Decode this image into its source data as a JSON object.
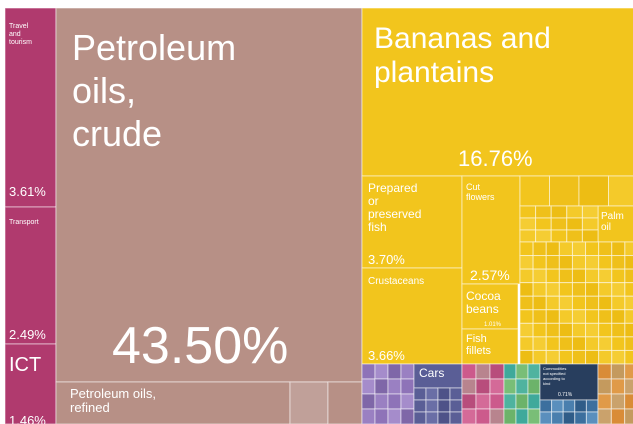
{
  "chart_data": {
    "type": "treemap",
    "title": "",
    "background": "#ffffff",
    "palette": {
      "services": "#b03a6e",
      "mineral": "#b79086",
      "food": "#f2c51d",
      "machinery": "#8e73b8",
      "vehicles": "#5a5e96",
      "chemicals": "#cc5a8c",
      "minerals_other": "#b8848e",
      "misc_teal": "#3fa99b",
      "misc_green": "#6cb36a",
      "misc_navy": "#283e5e",
      "misc_orange": "#d98c37",
      "misc_tan": "#caa26c"
    },
    "items": [
      {
        "label": "Travel and tourism",
        "value_text": "3.61%",
        "group": "services"
      },
      {
        "label": "Transport",
        "value_text": "2.49%",
        "group": "services"
      },
      {
        "label": "ICT",
        "value_text": "1.46%",
        "group": "services"
      },
      {
        "label": "Petroleum oils, crude",
        "value_text": "43.50%",
        "group": "mineral"
      },
      {
        "label": "Petroleum oils, refined",
        "value_text": "",
        "group": "mineral"
      },
      {
        "label": "Bananas and plantains",
        "value_text": "16.76%",
        "group": "food"
      },
      {
        "label": "Prepared or preserved fish",
        "value_text": "3.70%",
        "group": "food"
      },
      {
        "label": "Crustaceans",
        "value_text": "3.66%",
        "group": "food"
      },
      {
        "label": "Cut flowers",
        "value_text": "2.57%",
        "group": "food"
      },
      {
        "label": "Cocoa beans",
        "value_text": "1.01%",
        "group": "food"
      },
      {
        "label": "Fish fillets",
        "value_text": "",
        "group": "food"
      },
      {
        "label": "Palm oil",
        "value_text": "",
        "group": "food"
      },
      {
        "label": "Cars",
        "value_text": "",
        "group": "vehicles"
      },
      {
        "label": "Commodities not specified according to kind",
        "value_text": "0.71%",
        "group": "misc_navy"
      }
    ]
  }
}
